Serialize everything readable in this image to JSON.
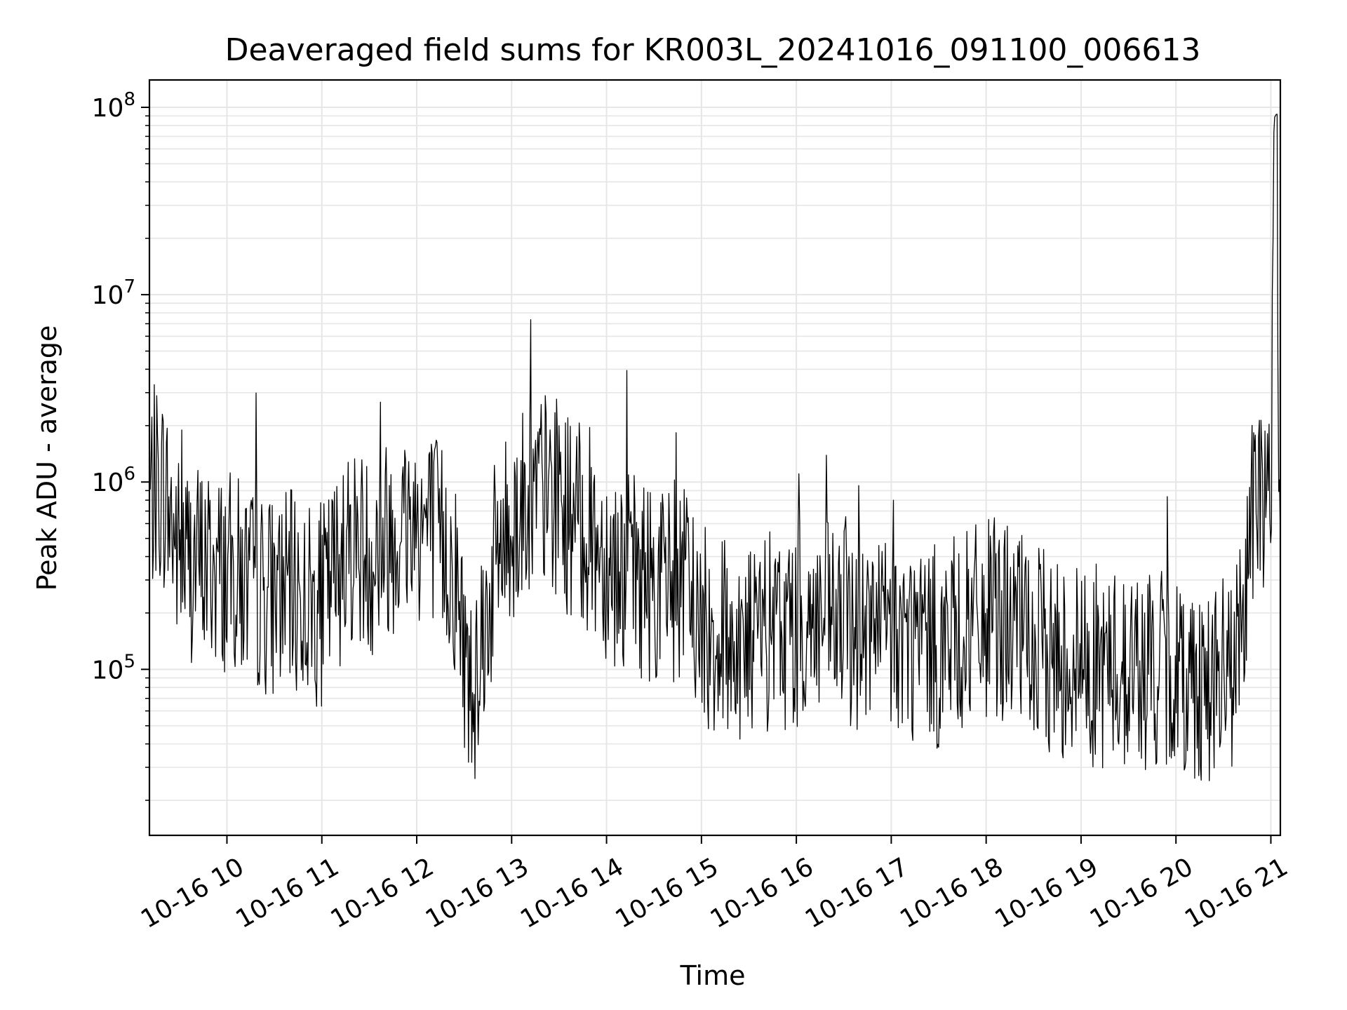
{
  "chart_data": {
    "type": "line",
    "title": "Deaveraged field sums for KR003L_20241016_091100_006613",
    "xlabel": "Time",
    "ylabel": "Peak ADU - average",
    "y_scale": "log",
    "ylim": [
      13000,
      140000000
    ],
    "xlim": [
      "2024-10-16 09:11",
      "2024-10-16 21:06"
    ],
    "x_ticks": [
      "2024-10-16 10:00",
      "2024-10-16 11:00",
      "2024-10-16 12:00",
      "2024-10-16 13:00",
      "2024-10-16 14:00",
      "2024-10-16 15:00",
      "2024-10-16 16:00",
      "2024-10-16 17:00",
      "2024-10-16 18:00",
      "2024-10-16 19:00",
      "2024-10-16 20:00",
      "2024-10-16 21:00"
    ],
    "x_tick_labels": [
      "10-16 10",
      "10-16 11",
      "10-16 12",
      "10-16 13",
      "10-16 14",
      "10-16 15",
      "10-16 16",
      "10-16 17",
      "10-16 18",
      "10-16 19",
      "10-16 20",
      "10-16 21"
    ],
    "y_ticks": [
      100000,
      1000000,
      10000000,
      100000000
    ],
    "y_tick_labels": [
      {
        "base": "10",
        "exp": "5"
      },
      {
        "base": "10",
        "exp": "6"
      },
      {
        "base": "10",
        "exp": "7"
      },
      {
        "base": "10",
        "exp": "8"
      }
    ],
    "grid": true,
    "line_color": "#000000",
    "grid_color": "#e6e6e6",
    "series": [
      {
        "x": [
          "2024-10-16 09:11",
          "2024-10-16 09:15",
          "2024-10-16 09:20",
          "2024-10-16 09:25",
          "2024-10-16 09:30",
          "2024-10-16 09:40",
          "2024-10-16 09:50",
          "2024-10-16 10:00",
          "2024-10-16 10:10",
          "2024-10-16 10:20",
          "2024-10-16 10:30",
          "2024-10-16 10:40",
          "2024-10-16 10:50",
          "2024-10-16 11:00",
          "2024-10-16 11:10",
          "2024-10-16 11:20",
          "2024-10-16 11:30",
          "2024-10-16 11:40",
          "2024-10-16 11:50",
          "2024-10-16 12:00",
          "2024-10-16 12:10",
          "2024-10-16 12:15",
          "2024-10-16 12:20",
          "2024-10-16 12:25",
          "2024-10-16 12:30",
          "2024-10-16 12:35",
          "2024-10-16 12:40",
          "2024-10-16 12:45",
          "2024-10-16 12:50",
          "2024-10-16 13:00",
          "2024-10-16 13:10",
          "2024-10-16 13:20",
          "2024-10-16 13:30",
          "2024-10-16 13:35",
          "2024-10-16 13:40",
          "2024-10-16 13:50",
          "2024-10-16 14:00",
          "2024-10-16 14:10",
          "2024-10-16 14:20",
          "2024-10-16 14:30",
          "2024-10-16 14:40",
          "2024-10-16 14:50",
          "2024-10-16 15:00",
          "2024-10-16 15:10",
          "2024-10-16 15:20",
          "2024-10-16 15:30",
          "2024-10-16 15:40",
          "2024-10-16 15:50",
          "2024-10-16 16:00",
          "2024-10-16 16:10",
          "2024-10-16 16:20",
          "2024-10-16 16:30",
          "2024-10-16 16:40",
          "2024-10-16 16:50",
          "2024-10-16 17:00",
          "2024-10-16 17:10",
          "2024-10-16 17:20",
          "2024-10-16 17:30",
          "2024-10-16 17:35",
          "2024-10-16 17:40",
          "2024-10-16 17:50",
          "2024-10-16 18:00",
          "2024-10-16 18:10",
          "2024-10-16 18:20",
          "2024-10-16 18:30",
          "2024-10-16 18:40",
          "2024-10-16 18:50",
          "2024-10-16 19:00",
          "2024-10-16 19:10",
          "2024-10-16 19:20",
          "2024-10-16 19:30",
          "2024-10-16 19:40",
          "2024-10-16 19:50",
          "2024-10-16 20:00",
          "2024-10-16 20:10",
          "2024-10-16 20:20",
          "2024-10-16 20:30",
          "2024-10-16 20:35",
          "2024-10-16 20:40",
          "2024-10-16 20:45",
          "2024-10-16 20:50",
          "2024-10-16 20:52",
          "2024-10-16 20:55",
          "2024-10-16 20:58",
          "2024-10-16 21:00",
          "2024-10-16 21:02",
          "2024-10-16 21:04",
          "2024-10-16 21:05",
          "2024-10-16 21:06"
        ],
        "y": [
          800000,
          1000000,
          900000,
          600000,
          400000,
          380000,
          350000,
          330000,
          300000,
          260000,
          250000,
          260000,
          230000,
          220000,
          350000,
          500000,
          400000,
          500000,
          600000,
          650000,
          550000,
          500000,
          400000,
          300000,
          130000,
          70000,
          150000,
          200000,
          400000,
          600000,
          800000,
          900000,
          800000,
          700000,
          600000,
          550000,
          400000,
          340000,
          320000,
          300000,
          280000,
          270000,
          170000,
          150000,
          140000,
          140000,
          150000,
          160000,
          170000,
          180000,
          175000,
          165000,
          160000,
          155000,
          150000,
          145000,
          140000,
          130000,
          140000,
          150000,
          160000,
          180000,
          190000,
          160000,
          130000,
          120000,
          115000,
          110000,
          105000,
          100000,
          100000,
          100000,
          95000,
          95000,
          90000,
          85000,
          90000,
          95000,
          130000,
          400000,
          700000,
          900000,
          950000,
          800000,
          600000,
          92000000,
          88000000,
          1100000,
          1000000
        ]
      }
    ]
  }
}
